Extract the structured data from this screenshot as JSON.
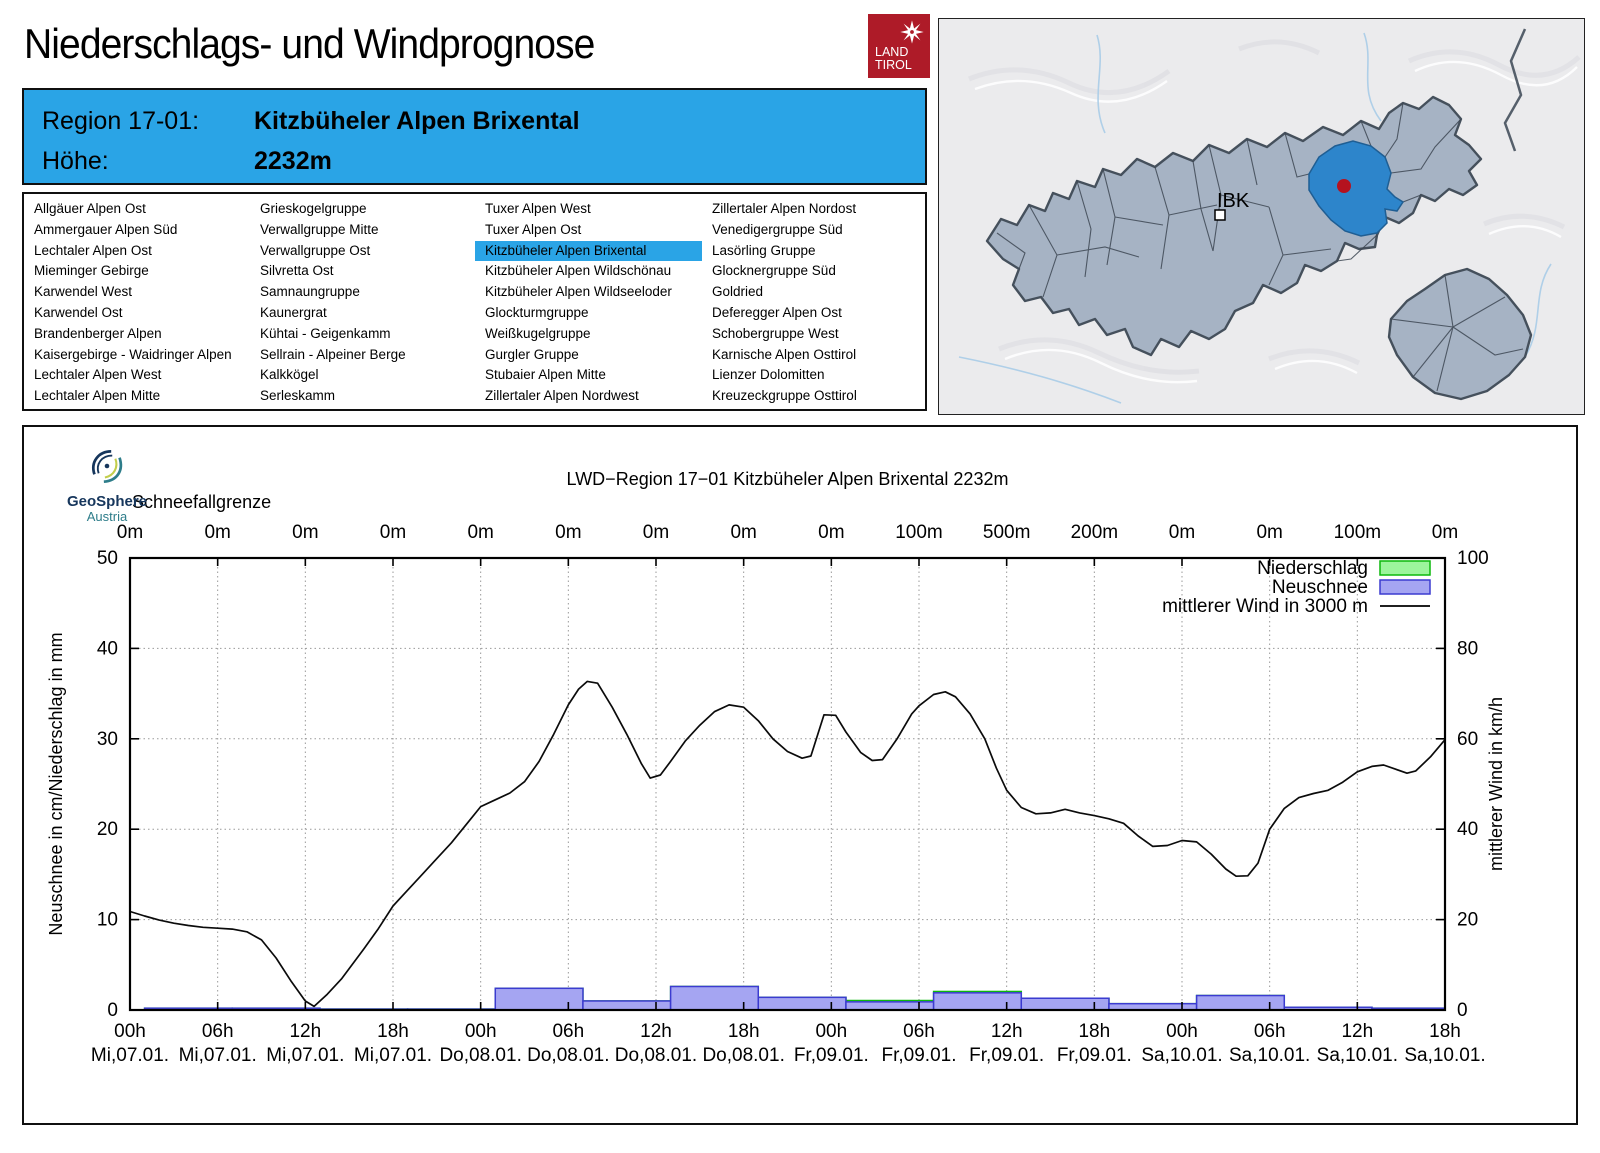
{
  "page": {
    "title": "Niederschlags- und Windprognose"
  },
  "logo_landtirol": {
    "line1": "LAND",
    "line2": "TIROL",
    "bg": "#AE1B28"
  },
  "header": {
    "region_label": "Region 17-01:",
    "region_value": "Kitzbüheler Alpen Brixental",
    "altitude_label": "Höhe:",
    "altitude_value": "2232m",
    "bg": "#2AA4E6"
  },
  "region_list": {
    "selected": "Kitzbüheler Alpen Brixental",
    "highlight_color": "#2AA4E6",
    "columns": [
      [
        "Allgäuer Alpen Ost",
        "Ammergauer Alpen Süd",
        "Lechtaler Alpen Ost",
        "Mieminger Gebirge",
        "Karwendel West",
        "Karwendel Ost",
        "Brandenberger Alpen",
        "Kaisergebirge - Waidringer Alpen",
        "Lechtaler Alpen West",
        "Lechtaler Alpen Mitte"
      ],
      [
        "Grieskogelgruppe",
        "Verwallgruppe Mitte",
        "Verwallgruppe Ost",
        "Silvretta Ost",
        "Samnaungruppe",
        "Kaunergrat",
        "Kühtai - Geigenkamm",
        "Sellrain - Alpeiner Berge",
        "Kalkkögel",
        "Serleskamm"
      ],
      [
        "Tuxer Alpen West",
        "Tuxer Alpen Ost",
        "Kitzbüheler Alpen Brixental",
        "Kitzbüheler Alpen Wildschönau",
        "Kitzbüheler Alpen Wildseeloder",
        "Glockturmgruppe",
        "Weißkugelgruppe",
        "Gurgler Gruppe",
        "Stubaier Alpen Mitte",
        "Zillertaler Alpen Nordwest"
      ],
      [
        "Zillertaler Alpen Nordost",
        "Venedigergruppe Süd",
        "Lasörling Gruppe",
        "Glocknergruppe Süd",
        "Goldried",
        "Deferegger Alpen Ost",
        "Schobergruppe West",
        "Karnische Alpen Osttirol",
        "Lienzer Dolomitten",
        "Kreuzeckgruppe Osttirol"
      ]
    ]
  },
  "map": {
    "city_label": "IBK",
    "highlight_color": "#2D85CB",
    "marker_color": "#B5121F",
    "region_fill": "#A6B3C4"
  },
  "geosphere": {
    "name": "GeoSphere",
    "sub": "Austria"
  },
  "chart_data": {
    "type": "bar",
    "title": "LWD−Region 17−01 Kitzbüheler Alpen Brixental 2232m",
    "top_axis_label": "Schneefallgrenze",
    "top_tick_labels": [
      "0m",
      "0m",
      "0m",
      "0m",
      "0m",
      "0m",
      "0m",
      "0m",
      "0m",
      "100m",
      "500m",
      "200m",
      "0m",
      "0m",
      "100m",
      "0m"
    ],
    "x_tick_labels": [
      [
        "00h",
        "Mi,07.01."
      ],
      [
        "06h",
        "Mi,07.01."
      ],
      [
        "12h",
        "Mi,07.01."
      ],
      [
        "18h",
        "Mi,07.01."
      ],
      [
        "00h",
        "Do,08.01."
      ],
      [
        "06h",
        "Do,08.01."
      ],
      [
        "12h",
        "Do,08.01."
      ],
      [
        "18h",
        "Do,08.01."
      ],
      [
        "00h",
        "Fr,09.01."
      ],
      [
        "06h",
        "Fr,09.01."
      ],
      [
        "12h",
        "Fr,09.01."
      ],
      [
        "18h",
        "Fr,09.01."
      ],
      [
        "00h",
        "Sa,10.01."
      ],
      [
        "06h",
        "Sa,10.01."
      ],
      [
        "12h",
        "Sa,10.01."
      ],
      [
        "18h",
        "Sa,10.01."
      ]
    ],
    "xlim_hours": [
      0,
      90
    ],
    "ylabel_left": "Neuschnee in cm/Niederschlag in mm",
    "ylabel_right": "mittlerer Wind in km/h",
    "ylim_left": [
      0,
      50
    ],
    "yticks_left": [
      0,
      10,
      20,
      30,
      40,
      50
    ],
    "ylim_right": [
      0,
      100
    ],
    "yticks_right": [
      0,
      20,
      40,
      60,
      80,
      100
    ],
    "grid": "dotted",
    "legend_position": "top-right-inside",
    "legend": [
      {
        "label": "Niederschlag",
        "fill": "#9CF59C",
        "stroke": "#0CB80C"
      },
      {
        "label": "Neuschnee",
        "fill": "#A5A5F2",
        "stroke": "#3B3BD0"
      },
      {
        "label": "mittlerer Wind in 3000 m",
        "stroke": "#000000"
      }
    ],
    "niederschlag_mm": [
      [
        1,
        7,
        0.2
      ],
      [
        7,
        13,
        0.2
      ],
      [
        13,
        19,
        0.1
      ],
      [
        19,
        25,
        0.1
      ],
      [
        25,
        31,
        2.4
      ],
      [
        31,
        37,
        1.0
      ],
      [
        37,
        43,
        2.6
      ],
      [
        43,
        49,
        1.4
      ],
      [
        49,
        55,
        1.05
      ],
      [
        55,
        61,
        2.05
      ],
      [
        61,
        67,
        1.3
      ],
      [
        67,
        73,
        0.7
      ],
      [
        73,
        79,
        1.6
      ],
      [
        79,
        85,
        0.3
      ],
      [
        85,
        90,
        0.2
      ]
    ],
    "neuschnee_cm": [
      [
        1,
        7,
        0.2
      ],
      [
        7,
        13,
        0.2
      ],
      [
        13,
        19,
        0.1
      ],
      [
        19,
        25,
        0.1
      ],
      [
        25,
        31,
        2.4
      ],
      [
        31,
        37,
        1.0
      ],
      [
        37,
        43,
        2.6
      ],
      [
        43,
        49,
        1.4
      ],
      [
        49,
        55,
        0.9
      ],
      [
        55,
        61,
        1.9
      ],
      [
        61,
        67,
        1.3
      ],
      [
        67,
        73,
        0.7
      ],
      [
        73,
        79,
        1.6
      ],
      [
        79,
        85,
        0.3
      ],
      [
        85,
        90,
        0.2
      ]
    ],
    "wind_kmh": [
      [
        0,
        21.8
      ],
      [
        1,
        20.8
      ],
      [
        2,
        19.9
      ],
      [
        3,
        19.2
      ],
      [
        4,
        18.7
      ],
      [
        5,
        18.3
      ],
      [
        6,
        18.1
      ],
      [
        7,
        17.9
      ],
      [
        8,
        17.3
      ],
      [
        9,
        15.5
      ],
      [
        10,
        11.5
      ],
      [
        11,
        6.5
      ],
      [
        12,
        2.0
      ],
      [
        12.6,
        0.8
      ],
      [
        13.5,
        3.5
      ],
      [
        14.5,
        7.0
      ],
      [
        16,
        13.5
      ],
      [
        17,
        18.0
      ],
      [
        18,
        23.0
      ],
      [
        19,
        26.5
      ],
      [
        20,
        30.0
      ],
      [
        21,
        33.5
      ],
      [
        22,
        37.0
      ],
      [
        23,
        41.0
      ],
      [
        24,
        45.0
      ],
      [
        25,
        46.5
      ],
      [
        26,
        48.0
      ],
      [
        27,
        50.5
      ],
      [
        28,
        55.0
      ],
      [
        29,
        61.0
      ],
      [
        30,
        67.5
      ],
      [
        30.7,
        71.0
      ],
      [
        31.3,
        72.7
      ],
      [
        32,
        72.3
      ],
      [
        33,
        67.0
      ],
      [
        34,
        61.0
      ],
      [
        35,
        54.5
      ],
      [
        35.6,
        51.3
      ],
      [
        36.3,
        52.0
      ],
      [
        37,
        55.0
      ],
      [
        38,
        59.5
      ],
      [
        39,
        63.0
      ],
      [
        40,
        66.0
      ],
      [
        41,
        67.5
      ],
      [
        42,
        67.0
      ],
      [
        43,
        64.0
      ],
      [
        44,
        60.0
      ],
      [
        45,
        57.2
      ],
      [
        46,
        55.7
      ],
      [
        46.6,
        56.2
      ],
      [
        47.5,
        65.3
      ],
      [
        48.3,
        65.2
      ],
      [
        49,
        61.5
      ],
      [
        50,
        57.0
      ],
      [
        50.8,
        55.2
      ],
      [
        51.5,
        55.4
      ],
      [
        52.5,
        60.0
      ],
      [
        53.5,
        65.5
      ],
      [
        54,
        67.3
      ],
      [
        55,
        69.8
      ],
      [
        55.8,
        70.4
      ],
      [
        56.5,
        69.3
      ],
      [
        57.5,
        65.5
      ],
      [
        58.5,
        60.0
      ],
      [
        59.3,
        53.5
      ],
      [
        60,
        48.6
      ],
      [
        61,
        44.8
      ],
      [
        62,
        43.4
      ],
      [
        63,
        43.6
      ],
      [
        64,
        44.4
      ],
      [
        65,
        43.6
      ],
      [
        66,
        43.0
      ],
      [
        67,
        42.3
      ],
      [
        68,
        41.3
      ],
      [
        69,
        38.5
      ],
      [
        70,
        36.2
      ],
      [
        71,
        36.4
      ],
      [
        72,
        37.5
      ],
      [
        73,
        37.2
      ],
      [
        74,
        34.5
      ],
      [
        75,
        31.2
      ],
      [
        75.7,
        29.6
      ],
      [
        76.5,
        29.7
      ],
      [
        77.2,
        32.5
      ],
      [
        78,
        40.0
      ],
      [
        79,
        44.6
      ],
      [
        80,
        47.0
      ],
      [
        81,
        47.9
      ],
      [
        82,
        48.6
      ],
      [
        83,
        50.4
      ],
      [
        84,
        52.7
      ],
      [
        85,
        53.9
      ],
      [
        85.8,
        54.2
      ],
      [
        86.6,
        53.3
      ],
      [
        87.4,
        52.4
      ],
      [
        88,
        52.9
      ],
      [
        89,
        56.0
      ],
      [
        90,
        59.8
      ]
    ]
  }
}
